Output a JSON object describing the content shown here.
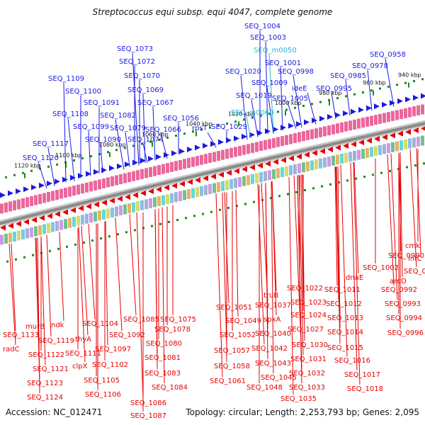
{
  "title": "Streptococcus equi subsp. equi 4047, complete genome",
  "footer": {
    "accession": "Accession: NC_012471",
    "topology": "Topology: circular; Length: 2,253,793 bp; Genes: 2,095"
  },
  "colors": {
    "forward_feature": "#1a1ae6",
    "reverse_feature": "#e60000",
    "rna_feature": "#2cb5d6",
    "backbone": "#8a8a8a",
    "tick_marks": "#1a8a1a"
  },
  "scale_ticks": [
    "1120 kbp",
    "1100 kbp",
    "1080 kbp",
    "1060 kbp",
    "1040 kbp",
    "1020 kbp",
    "1000 kbp",
    "980 kbp",
    "960 kbp",
    "940 kbp"
  ],
  "top_labels": [
    {
      "text": "SEQ_1004",
      "type": "fwd"
    },
    {
      "text": "SEQ_1003",
      "type": "fwd"
    },
    {
      "text": "SEQ_m0050",
      "type": "rna"
    },
    {
      "text": "SEQ_1073",
      "type": "fwd"
    },
    {
      "text": "SEQ_0958",
      "type": "fwd"
    },
    {
      "text": "SEQ_1072",
      "type": "fwd"
    },
    {
      "text": "SEQ_1001",
      "type": "fwd"
    },
    {
      "text": "SEQ_0978",
      "type": "fwd"
    },
    {
      "text": "SEQ_1020",
      "type": "fwd"
    },
    {
      "text": "SEQ_0998",
      "type": "fwd"
    },
    {
      "text": "SEQ_1070",
      "type": "fwd"
    },
    {
      "text": "SEQ_1109",
      "type": "fwd"
    },
    {
      "text": "SEQ_0985",
      "type": "fwd"
    },
    {
      "text": "SEQ_1009",
      "type": "fwd"
    },
    {
      "text": "ideE",
      "type": "fwd"
    },
    {
      "text": "SEQ_1100",
      "type": "fwd"
    },
    {
      "text": "SEQ_1069",
      "type": "fwd"
    },
    {
      "text": "SEQ_0995",
      "type": "fwd"
    },
    {
      "text": "SEQ_1019",
      "type": "fwd"
    },
    {
      "text": "SEQ_1005",
      "type": "fwd"
    },
    {
      "text": "SEQ_1091",
      "type": "fwd"
    },
    {
      "text": "SEQ_1067",
      "type": "fwd"
    },
    {
      "text": "SEQ_m0060",
      "type": "rna"
    },
    {
      "text": "SEQ_1108",
      "type": "fwd"
    },
    {
      "text": "SEQ_1082",
      "type": "fwd"
    },
    {
      "text": "SEQ_1056",
      "type": "fwd"
    },
    {
      "text": "SEQ_1099",
      "type": "fwd"
    },
    {
      "text": "SEQ_1079",
      "type": "fwd"
    },
    {
      "text": "SEQ_1066",
      "type": "fwd"
    },
    {
      "text": "rpsT",
      "type": "fwd"
    },
    {
      "text": "SEQ_1029",
      "type": "fwd"
    },
    {
      "text": "SEQ_1090",
      "type": "fwd"
    },
    {
      "text": "SEQ_1074",
      "type": "fwd"
    },
    {
      "text": "SEQ_1117",
      "type": "fwd"
    },
    {
      "text": "SEQ_1120",
      "type": "fwd"
    }
  ],
  "bottom_labels": [
    {
      "text": "cmk"
    },
    {
      "text": "SEQ_0990"
    },
    {
      "text": "infC"
    },
    {
      "text": "SEQ_0987"
    },
    {
      "text": "SEQ_1002"
    },
    {
      "text": "aroD"
    },
    {
      "text": "dnaE"
    },
    {
      "text": "SEQ_0992"
    },
    {
      "text": "SEQ_1022"
    },
    {
      "text": "SEQ_1011"
    },
    {
      "text": "truB"
    },
    {
      "text": "SEQ_0993"
    },
    {
      "text": "SEQ_1023"
    },
    {
      "text": "SEQ_1012"
    },
    {
      "text": "SEQ_1051"
    },
    {
      "text": "SEQ_1037"
    },
    {
      "text": "SEQ_0994"
    },
    {
      "text": "SEQ_1024"
    },
    {
      "text": "SEQ_1013"
    },
    {
      "text": "SEQ_1085"
    },
    {
      "text": "SEQ_1075"
    },
    {
      "text": "SEQ_1049"
    },
    {
      "text": "spxA"
    },
    {
      "text": "SEQ_1027"
    },
    {
      "text": "SEQ_0996"
    },
    {
      "text": "murB"
    },
    {
      "text": "ndk"
    },
    {
      "text": "SEQ_1104"
    },
    {
      "text": "SEQ_1078"
    },
    {
      "text": "SEQ_1014"
    },
    {
      "text": "SEQ_1133"
    },
    {
      "text": "SEQ_1092"
    },
    {
      "text": "SEQ_1052"
    },
    {
      "text": "SEQ_1040"
    },
    {
      "text": "SEQ_1119"
    },
    {
      "text": "thyA"
    },
    {
      "text": "SEQ_1080"
    },
    {
      "text": "SEQ_1030"
    },
    {
      "text": "SEQ_1015"
    },
    {
      "text": "radC"
    },
    {
      "text": "SEQ_1122"
    },
    {
      "text": "SEQ_1097"
    },
    {
      "text": "SEQ_1057"
    },
    {
      "text": "SEQ_1042"
    },
    {
      "text": "SEQ_1111"
    },
    {
      "text": "SEQ_1081"
    },
    {
      "text": "SEQ_1031"
    },
    {
      "text": "SEQ_1016"
    },
    {
      "text": "SEQ_1102"
    },
    {
      "text": "SEQ_1043"
    },
    {
      "text": "SEQ_1121"
    },
    {
      "text": "clpX"
    },
    {
      "text": "SEQ_1058"
    },
    {
      "text": "SEQ_1083"
    },
    {
      "text": "SEQ_1032"
    },
    {
      "text": "SEQ_1017"
    },
    {
      "text": "SEQ_1105"
    },
    {
      "text": "SEQ_1045"
    },
    {
      "text": "SEQ_1123"
    },
    {
      "text": "SEQ_1061"
    },
    {
      "text": "SEQ_1048"
    },
    {
      "text": "SEQ_1084"
    },
    {
      "text": "SEQ_1033"
    },
    {
      "text": "SEQ_1018"
    },
    {
      "text": "SEQ_1106"
    },
    {
      "text": "SEQ_1124"
    },
    {
      "text": "SEQ_1035"
    },
    {
      "text": "SEQ_1086"
    },
    {
      "text": "SEQ_1087"
    }
  ]
}
